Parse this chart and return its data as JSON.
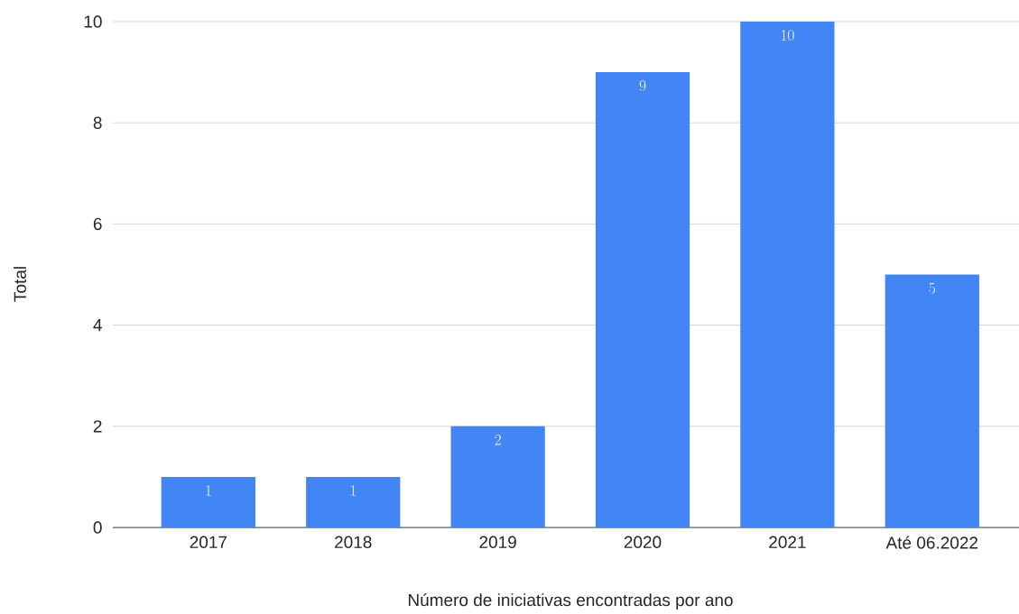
{
  "chart_data": {
    "type": "bar",
    "xlabel": "Número de iniciativas encontradas por ano",
    "ylabel": "Total",
    "categories": [
      "2017",
      "2018",
      "2019",
      "2020",
      "2021",
      "Até 06.2022"
    ],
    "values": [
      1,
      1,
      2,
      9,
      10,
      5
    ],
    "color": "#4285f4",
    "ylim": [
      0,
      10
    ],
    "yticks": [
      0,
      2,
      4,
      6,
      8,
      10
    ],
    "grid": "y",
    "data_labels": true
  }
}
